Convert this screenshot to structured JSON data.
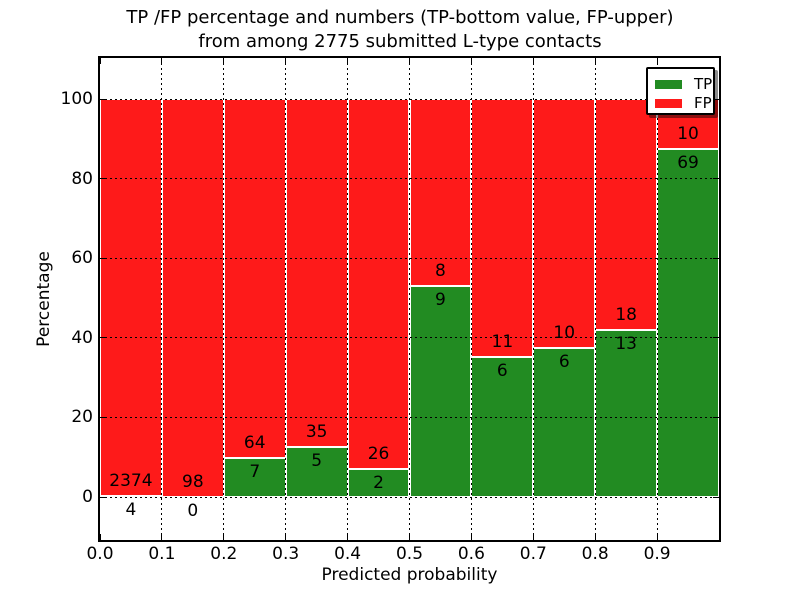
{
  "figure": {
    "title_line1": "TP /FP percentage and numbers (TP-bottom value, FP-upper)",
    "title_line2": "from among 2775 submitted L-type contacts"
  },
  "chart_data": {
    "type": "bar",
    "stacked": true,
    "title": "TP /FP percentage and numbers (TP-bottom value, FP-upper) from among 2775 submitted L-type contacts",
    "xlabel": "Predicted probability",
    "ylabel": "Percentage",
    "total_contacts": 2775,
    "categories": [
      "0.0-0.1",
      "0.1-0.2",
      "0.2-0.3",
      "0.3-0.4",
      "0.4-0.5",
      "0.5-0.6",
      "0.6-0.7",
      "0.7-0.8",
      "0.8-0.9",
      "0.9-1.0"
    ],
    "bin_edges": [
      0.0,
      0.1,
      0.2,
      0.3,
      0.4,
      0.5,
      0.6,
      0.7,
      0.8,
      0.9,
      1.0
    ],
    "series": [
      {
        "name": "TP",
        "color": "#228b22",
        "counts": [
          4,
          0,
          7,
          5,
          2,
          9,
          6,
          6,
          13,
          69
        ]
      },
      {
        "name": "FP",
        "color": "#fe1a1a",
        "counts": [
          2374,
          98,
          64,
          35,
          26,
          8,
          11,
          10,
          18,
          10
        ]
      }
    ],
    "tp_segment_percentages": [
      0.17,
      0.0,
      9.86,
      12.5,
      7.14,
      52.94,
      35.29,
      37.5,
      41.94,
      87.34
    ],
    "x_tick_labels": [
      "0.0",
      "0.1",
      "0.2",
      "0.3",
      "0.4",
      "0.5",
      "0.6",
      "0.7",
      "0.8",
      "0.9"
    ],
    "y_ticks": [
      0,
      20,
      40,
      60,
      80,
      100
    ],
    "xlim": [
      0.0,
      1.0
    ],
    "ylim": [
      -10.8,
      110.3
    ],
    "bar_edge_color": "#ffffff",
    "grid": "dotted, both axes, drawn above bars",
    "legend_position": "upper right",
    "legend": [
      {
        "label": "TP",
        "color": "#228b22"
      },
      {
        "label": "FP",
        "color": "#fe1a1a"
      }
    ]
  }
}
